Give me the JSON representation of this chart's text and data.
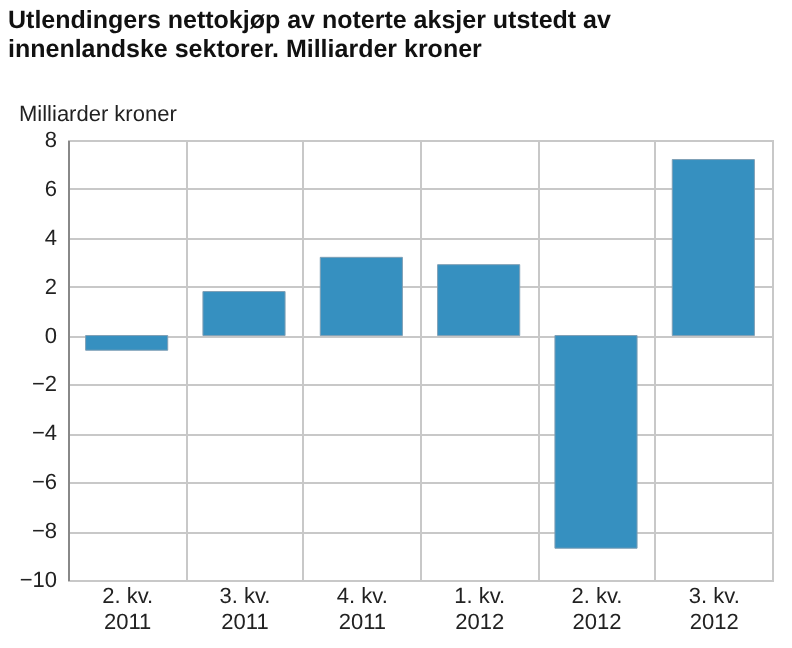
{
  "chart_data": {
    "type": "bar",
    "title": "Utlendingers nettokjøp av noterte aksjer utstedt av innenlandske sektorer. Milliarder kroner",
    "ylabel": "Milliarder kroner",
    "categories": [
      "2. kv.\n2011",
      "3. kv.\n2011",
      "4. kv.\n2011",
      "1. kv.\n2012",
      "2. kv.\n2012",
      "3. kv.\n2012"
    ],
    "values": [
      -0.6,
      1.8,
      3.2,
      2.9,
      -8.7,
      7.2
    ],
    "color": "#3690c0",
    "ylim": [
      -10,
      8
    ],
    "yticks": [
      -10,
      -8,
      -6,
      -4,
      -2,
      0,
      2,
      4,
      6,
      8
    ],
    "grid": true
  }
}
